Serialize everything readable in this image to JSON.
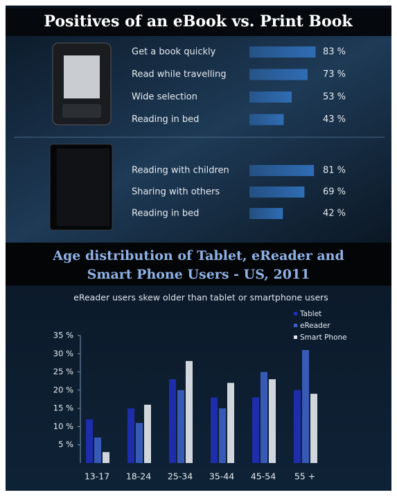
{
  "chart_data": [
    {
      "type": "hbar",
      "title": "Positives of an eBook vs. Print Book",
      "categories": [
        "Get a book quickly",
        "Read while travelling",
        "Wide selection",
        "Reading in bed"
      ],
      "values": [
        83,
        73,
        53,
        43
      ],
      "value_labels": [
        "83 %",
        "73 %",
        "53 %",
        "43 %"
      ],
      "color": "#2f6db5"
    },
    {
      "type": "hbar",
      "categories": [
        "Reading with children",
        "Sharing with others",
        "Reading in bed"
      ],
      "values": [
        81,
        69,
        42
      ],
      "value_labels": [
        "81 %",
        "69 %",
        "42 %"
      ],
      "color": "#2f6db5"
    },
    {
      "type": "grouped_bar",
      "title": "Age distribution of Tablet, eReader and Smart Phone Users - US, 2011",
      "subtitle": "eReader users skew older than tablet or smartphone users",
      "categories": [
        "13-17",
        "18-24",
        "25-34",
        "35-44",
        "45-54",
        "55 +"
      ],
      "series": [
        {
          "name": "Tablet",
          "color": "#1f2fb5",
          "values": [
            12,
            15,
            23,
            18,
            18,
            20
          ]
        },
        {
          "name": "eReader",
          "color": "#3c5fc2",
          "values": [
            7,
            11,
            20,
            15,
            25,
            31
          ]
        },
        {
          "name": "Smart Phone",
          "color": "#e2e6ec",
          "values": [
            3,
            16,
            28,
            22,
            23,
            19
          ]
        }
      ],
      "ylim": [
        0,
        35
      ],
      "yticks": [
        {
          "value": 5,
          "label": "5 %"
        },
        {
          "value": 10,
          "label": "10 %"
        },
        {
          "value": 15,
          "label": "15 %"
        },
        {
          "value": 20,
          "label": "20 %"
        },
        {
          "value": 25,
          "label": "25 %"
        },
        {
          "value": 30,
          "label": "30 %"
        },
        {
          "value": 35,
          "label": "35 %"
        }
      ],
      "legend": "upper right"
    }
  ]
}
